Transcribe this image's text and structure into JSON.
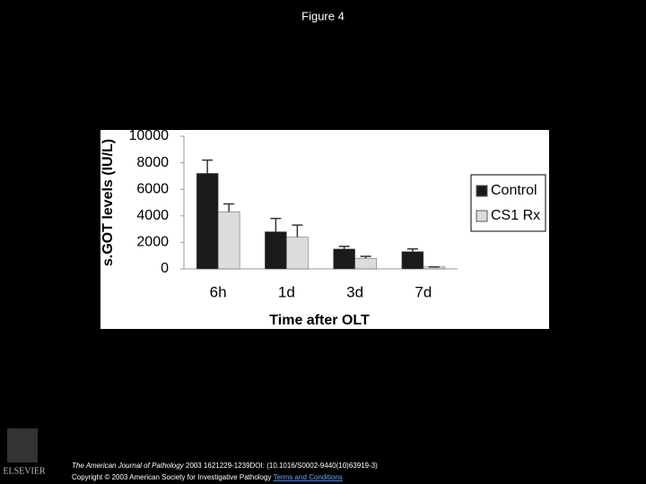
{
  "header": {
    "title": "Figure 4"
  },
  "chart_data": {
    "type": "bar",
    "y_label": "s.GOT levels (IU/L)",
    "x_label": "Time after OLT",
    "categories": [
      "6h",
      "1d",
      "3d",
      "7d"
    ],
    "series": [
      {
        "name": "Control",
        "color": "#1a1a1a",
        "values": [
          7200,
          2800,
          1500,
          1300
        ],
        "errors": [
          1000,
          1000,
          200,
          200
        ]
      },
      {
        "name": "CS1 Rx",
        "color": "#dcdcdc",
        "values": [
          4300,
          2400,
          800,
          150
        ],
        "errors": [
          600,
          900,
          150,
          0
        ]
      }
    ],
    "ylim": [
      0,
      10000
    ],
    "yticks": [
      0,
      2000,
      4000,
      6000,
      8000,
      10000
    ],
    "grid": false,
    "legend": "right"
  },
  "footer": {
    "logo_text": "ELSEVIER",
    "journal": "The American Journal of Pathology",
    "citation": "2003 1621229-1239DOI: (10.1016/S0002-9440(10)63919-3)",
    "copyright": "Copyright © 2003 American Society for Investigative Pathology",
    "terms": "Terms and Conditions"
  }
}
